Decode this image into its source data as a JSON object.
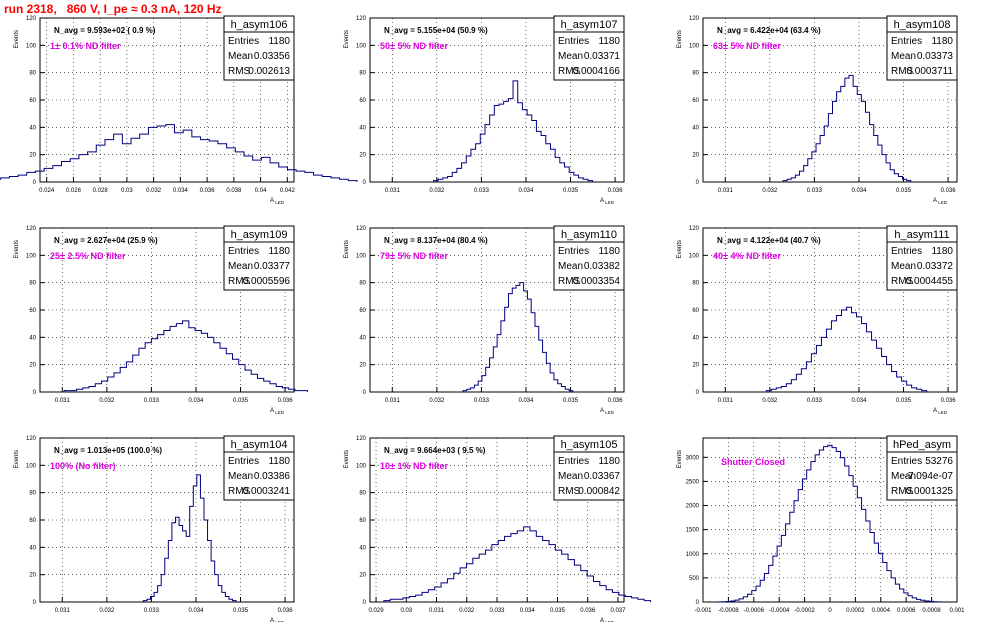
{
  "page": {
    "title": "run 2318,   860 V, I_pe ≈ 0.3 nA, 120 Hz"
  },
  "chart_data": [
    {
      "type": "histogram",
      "name": "h_asym106",
      "stats": [
        [
          "Entries",
          "1180"
        ],
        [
          "Mean",
          "0.03356"
        ],
        [
          "RMS",
          "0.002613"
        ]
      ],
      "navg": "N_avg = 9.593e+02 ( 0.9 %)",
      "filter": "1± 0.1% ND filter",
      "xlim": [
        0.0235,
        0.0425
      ],
      "ylim": [
        0,
        120
      ],
      "xticks": [
        0.024,
        0.026,
        0.028,
        0.03,
        0.032,
        0.034,
        0.036,
        0.038,
        0.04,
        0.042
      ],
      "xticklabels": [
        "0.024",
        "0.026",
        "0.028",
        "0.03",
        "0.032",
        "0.034",
        "0.036",
        "0.038",
        "0.04",
        "0.042"
      ],
      "yticks": [
        0,
        20,
        40,
        60,
        80,
        100,
        120
      ],
      "ylabel": "Events",
      "xlabel": "A_LED",
      "gen": {
        "mean": 0.03356,
        "sigma": 0.0026,
        "counts": [
          2,
          3,
          4,
          5,
          7,
          8,
          10,
          12,
          15,
          17,
          20,
          22,
          27,
          31,
          35,
          28,
          32,
          35,
          40,
          41,
          42,
          36,
          38,
          33,
          31,
          30,
          28,
          25,
          22,
          19,
          16,
          18,
          14,
          11,
          9,
          8,
          7,
          5,
          4,
          3,
          2,
          1
        ]
      }
    },
    {
      "type": "histogram",
      "name": "h_asym107",
      "stats": [
        [
          "Entries",
          "1180"
        ],
        [
          "Mean",
          "0.03371"
        ],
        [
          "RMS",
          "0.0004166"
        ]
      ],
      "navg": "N_avg = 5.155e+04 (50.9 %)",
      "filter": "50± 5% ND filter",
      "xlim": [
        0.0305,
        0.0362
      ],
      "ylim": [
        0,
        120
      ],
      "xticks": [
        0.031,
        0.032,
        0.033,
        0.034,
        0.035,
        0.036
      ],
      "xticklabels": [
        "0.031",
        "0.032",
        "0.033",
        "0.034",
        "0.035",
        "0.036"
      ],
      "yticks": [
        0,
        20,
        40,
        60,
        80,
        100,
        120
      ],
      "ylabel": "Events",
      "xlabel": "A_LED",
      "gen": {
        "mean": 0.03371,
        "sigma": 0.00042,
        "counts": [
          1,
          2,
          3,
          4,
          7,
          10,
          14,
          19,
          24,
          28,
          35,
          42,
          49,
          56,
          57,
          59,
          61,
          74,
          58,
          53,
          49,
          45,
          37,
          34,
          28,
          24,
          18,
          14,
          11,
          7,
          5,
          3,
          2,
          1
        ]
      }
    },
    {
      "type": "histogram",
      "name": "h_asym108",
      "stats": [
        [
          "Entries",
          "1180"
        ],
        [
          "Mean",
          "0.03373"
        ],
        [
          "RMS",
          "0.0003711"
        ]
      ],
      "navg": "N_avg = 6.422e+04 (63.4 %)",
      "filter": "63± 5% ND filter",
      "xlim": [
        0.0305,
        0.0362
      ],
      "ylim": [
        0,
        120
      ],
      "xticks": [
        0.031,
        0.032,
        0.033,
        0.034,
        0.035,
        0.036
      ],
      "xticklabels": [
        "0.031",
        "0.032",
        "0.033",
        "0.034",
        "0.035",
        "0.036"
      ],
      "yticks": [
        0,
        20,
        40,
        60,
        80,
        100,
        120
      ],
      "ylabel": "Events",
      "xlabel": "A_LED",
      "gen": {
        "mean": 0.03373,
        "sigma": 0.00037,
        "counts": [
          1,
          2,
          3,
          5,
          8,
          12,
          17,
          22,
          28,
          34,
          41,
          50,
          59,
          66,
          70,
          76,
          78,
          70,
          64,
          59,
          51,
          42,
          34,
          27,
          20,
          14,
          9,
          6,
          4,
          2,
          1
        ]
      }
    },
    {
      "type": "histogram",
      "name": "h_asym109",
      "stats": [
        [
          "Entries",
          "1180"
        ],
        [
          "Mean",
          "0.03377"
        ],
        [
          "RMS",
          "0.0005596"
        ]
      ],
      "navg": "N_avg = 2.627e+04 (25.9 %)",
      "filter": "25± 2.5% ND filter",
      "xlim": [
        0.0305,
        0.0362
      ],
      "ylim": [
        0,
        120
      ],
      "xticks": [
        0.031,
        0.032,
        0.033,
        0.034,
        0.035,
        0.036
      ],
      "xticklabels": [
        "0.031",
        "0.032",
        "0.033",
        "0.034",
        "0.035",
        "0.036"
      ],
      "yticks": [
        0,
        20,
        40,
        60,
        80,
        100,
        120
      ],
      "ylabel": "Events",
      "xlabel": "A_LED",
      "gen": {
        "mean": 0.03377,
        "sigma": 0.00056,
        "counts": [
          1,
          1,
          2,
          3,
          4,
          6,
          8,
          11,
          14,
          18,
          22,
          27,
          32,
          36,
          39,
          42,
          45,
          48,
          50,
          52,
          47,
          45,
          43,
          40,
          36,
          32,
          28,
          24,
          20,
          16,
          13,
          10,
          8,
          6,
          4,
          3,
          2,
          1,
          1
        ]
      }
    },
    {
      "type": "histogram",
      "name": "h_asym110",
      "stats": [
        [
          "Entries",
          "1180"
        ],
        [
          "Mean",
          "0.03382"
        ],
        [
          "RMS",
          "0.0003354"
        ]
      ],
      "navg": "N_avg = 8.137e+04 (80.4 %)",
      "filter": "79± 5% ND filter",
      "xlim": [
        0.0305,
        0.0362
      ],
      "ylim": [
        0,
        120
      ],
      "xticks": [
        0.031,
        0.032,
        0.033,
        0.034,
        0.035,
        0.036
      ],
      "xticklabels": [
        "0.031",
        "0.032",
        "0.033",
        "0.034",
        "0.035",
        "0.036"
      ],
      "yticks": [
        0,
        20,
        40,
        60,
        80,
        100,
        120
      ],
      "ylabel": "Events",
      "xlabel": "A_LED",
      "gen": {
        "mean": 0.03382,
        "sigma": 0.00034,
        "counts": [
          1,
          2,
          3,
          5,
          8,
          12,
          18,
          25,
          33,
          42,
          52,
          62,
          72,
          76,
          78,
          80,
          74,
          68,
          58,
          48,
          38,
          29,
          21,
          14,
          9,
          6,
          4,
          2,
          1
        ]
      }
    },
    {
      "type": "histogram",
      "name": "h_asym111",
      "stats": [
        [
          "Entries",
          "1180"
        ],
        [
          "Mean",
          "0.03372"
        ],
        [
          "RMS",
          "0.0004455"
        ]
      ],
      "navg": "N_avg = 4.122e+04 (40.7 %)",
      "filter": "40± 4% ND filter",
      "xlim": [
        0.0305,
        0.0362
      ],
      "ylim": [
        0,
        120
      ],
      "xticks": [
        0.031,
        0.032,
        0.033,
        0.034,
        0.035,
        0.036
      ],
      "xticklabels": [
        "0.031",
        "0.032",
        "0.033",
        "0.034",
        "0.035",
        "0.036"
      ],
      "yticks": [
        0,
        20,
        40,
        60,
        80,
        100,
        120
      ],
      "ylabel": "Events",
      "xlabel": "A_LED",
      "gen": {
        "mean": 0.03372,
        "sigma": 0.00045,
        "counts": [
          1,
          2,
          3,
          4,
          6,
          9,
          13,
          17,
          22,
          28,
          34,
          40,
          46,
          52,
          56,
          60,
          62,
          58,
          55,
          50,
          44,
          38,
          32,
          26,
          20,
          15,
          11,
          8,
          5,
          3,
          2,
          1
        ]
      }
    },
    {
      "type": "histogram",
      "name": "h_asym104",
      "stats": [
        [
          "Entries",
          "1180"
        ],
        [
          "Mean",
          "0.03386"
        ],
        [
          "RMS",
          "0.0003241"
        ]
      ],
      "navg": "N_avg = 1.013e+05 (100.0 %)",
      "filter": "100% (No filter)",
      "xlim": [
        0.0305,
        0.0362
      ],
      "ylim": [
        0,
        120
      ],
      "xticks": [
        0.031,
        0.032,
        0.033,
        0.034,
        0.035,
        0.036
      ],
      "xticklabels": [
        "0.031",
        "0.032",
        "0.033",
        "0.034",
        "0.035",
        "0.036"
      ],
      "yticks": [
        0,
        20,
        40,
        60,
        80,
        100,
        120
      ],
      "ylabel": "Events",
      "xlabel": "A_LED",
      "gen": {
        "mean": 0.03386,
        "sigma": 0.00032,
        "counts": [
          1,
          2,
          4,
          7,
          12,
          20,
          32,
          45,
          58,
          62,
          56,
          52,
          48,
          70,
          85,
          93,
          76,
          60,
          45,
          30,
          20,
          12,
          7,
          4,
          2,
          1
        ]
      }
    },
    {
      "type": "histogram",
      "name": "h_asym105",
      "stats": [
        [
          "Entries",
          "1180"
        ],
        [
          "Mean",
          "0.03367"
        ],
        [
          "RMS",
          "0.000842"
        ]
      ],
      "navg": "N_avg = 9.664e+03 ( 9.5 %)",
      "filter": "10± 1% ND filter",
      "xlim": [
        0.0288,
        0.0372
      ],
      "ylim": [
        0,
        120
      ],
      "xticks": [
        0.029,
        0.03,
        0.031,
        0.032,
        0.033,
        0.034,
        0.035,
        0.036,
        0.037
      ],
      "xticklabels": [
        "0.029",
        "0.03",
        "0.031",
        "0.032",
        "0.033",
        "0.034",
        "0.035",
        "0.036",
        "0.037"
      ],
      "yticks": [
        0,
        20,
        40,
        60,
        80,
        100,
        120
      ],
      "ylabel": "Events",
      "xlabel": "A_LED",
      "gen": {
        "mean": 0.03367,
        "sigma": 0.00084,
        "counts": [
          1,
          2,
          2,
          3,
          4,
          5,
          7,
          9,
          11,
          14,
          17,
          21,
          25,
          28,
          32,
          35,
          38,
          42,
          45,
          48,
          50,
          52,
          55,
          52,
          48,
          45,
          42,
          38,
          35,
          31,
          27,
          23,
          19,
          15,
          12,
          9,
          7,
          5,
          4,
          3,
          2,
          1
        ]
      }
    },
    {
      "type": "histogram",
      "name": "hPed_asym",
      "stats": [
        [
          "Entries",
          "53276"
        ],
        [
          "Mean",
          "-7.094e-07"
        ],
        [
          "RMS",
          "0.0001325"
        ]
      ],
      "navg": "",
      "filter": "Shutter Closed",
      "xlim": [
        -0.001,
        0.001
      ],
      "ylim": [
        0,
        3400
      ],
      "xticks": [
        -0.001,
        -0.0008,
        -0.0006,
        -0.0004,
        -0.0002,
        0,
        0.0002,
        0.0004,
        0.0006,
        0.0008,
        0.001
      ],
      "xticklabels": [
        "-0.001",
        "-0.0008",
        "-0.0006",
        "-0.0004",
        "-0.0002",
        "0",
        "0.0002",
        "0.0004",
        "0.0006",
        "0.0008",
        "0.001"
      ],
      "yticks": [
        0,
        500,
        1000,
        1500,
        2000,
        2500,
        3000
      ],
      "ylabel": "Events",
      "xlabel": "",
      "gen": {
        "mean": -7e-07,
        "sigma": 0.000133,
        "counts": [
          2,
          5,
          10,
          20,
          38,
          65,
          105,
          160,
          235,
          330,
          450,
          590,
          760,
          950,
          1160,
          1380,
          1620,
          1860,
          2100,
          2330,
          2550,
          2740,
          2910,
          3050,
          3150,
          3220,
          3250,
          3200,
          3120,
          2990,
          2820,
          2620,
          2400,
          2160,
          1920,
          1680,
          1440,
          1220,
          1010,
          820,
          650,
          500,
          370,
          270,
          190,
          130,
          85,
          55,
          35,
          20,
          12,
          6,
          3
        ]
      }
    }
  ]
}
